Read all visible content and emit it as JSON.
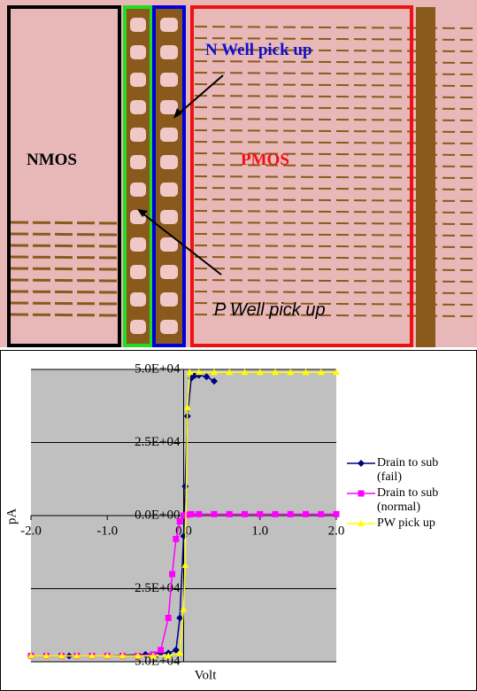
{
  "image_labels": [
    "N Well pick up",
    "NMOS",
    "PMOS",
    "P Well pick up"
  ],
  "chart_data": {
    "type": "line",
    "x_label": "Volt",
    "y_label": "pA",
    "xlim": [
      -2,
      2
    ],
    "ylim": [
      -50000,
      50000
    ],
    "xticks": [
      {
        "value": -2,
        "label": "-2.0"
      },
      {
        "value": -1,
        "label": "-1.0"
      },
      {
        "value": 0,
        "label": "0.0"
      },
      {
        "value": 1,
        "label": "1.0"
      },
      {
        "value": 2,
        "label": "2.0"
      }
    ],
    "yticks": [
      {
        "value": 50000,
        "label": "5.0E+04"
      },
      {
        "value": 25000,
        "label": "2.5E+04"
      },
      {
        "value": 0,
        "label": "0.0E+00"
      },
      {
        "value": -25000,
        "label": "-2.5E+04"
      },
      {
        "value": -50000,
        "label": "-5.0E+04"
      }
    ],
    "grid": true,
    "legend": "right",
    "series": [
      {
        "name": "Drain to sub (fail)",
        "color": "#000080",
        "marker": "diamond",
        "x": [
          -2,
          -1.5,
          -1,
          -0.5,
          -0.3,
          -0.2,
          -0.1,
          -0.05,
          0,
          0.02,
          0.05,
          0.1,
          0.15,
          0.2,
          0.3,
          0.4
        ],
        "values": [
          -48000,
          -48000,
          -48000,
          -47500,
          -47000,
          -47000,
          -46000,
          -35000,
          -7000,
          10000,
          34000,
          47000,
          48000,
          48000,
          47500,
          46000
        ]
      },
      {
        "name": "Drain to sub (normal)",
        "color": "#ff00ff",
        "marker": "square",
        "x": [
          -2,
          -1.8,
          -1.6,
          -1.4,
          -1.2,
          -1,
          -0.8,
          -0.6,
          -0.4,
          -0.3,
          -0.2,
          -0.15,
          -0.1,
          -0.05,
          0,
          0.05,
          0.1,
          0.2,
          0.4,
          0.6,
          0.8,
          1,
          1.2,
          1.4,
          1.6,
          1.8,
          2
        ],
        "values": [
          -48000,
          -48000,
          -48000,
          -48000,
          -48000,
          -48000,
          -48000,
          -48000,
          -47500,
          -46000,
          -35000,
          -20000,
          -8000,
          -2000,
          0,
          300,
          500,
          500,
          500,
          500,
          500,
          500,
          500,
          500,
          500,
          500,
          500
        ]
      },
      {
        "name": "PW pick up",
        "color": "#ffff00",
        "marker": "triangle",
        "x": [
          -2,
          -1.8,
          -1.6,
          -1.4,
          -1.2,
          -1,
          -0.8,
          -0.6,
          -0.4,
          -0.2,
          -0.05,
          0,
          0.02,
          0.05,
          0.08,
          0.2,
          0.4,
          0.6,
          0.8,
          1,
          1.2,
          1.4,
          1.6,
          1.8,
          2
        ],
        "values": [
          -48000,
          -48000,
          -48000,
          -48000,
          -48000,
          -48000,
          -48000,
          -48000,
          -48000,
          -48000,
          -47000,
          -32000,
          -17000,
          37000,
          49000,
          49000,
          49000,
          49000,
          49000,
          49000,
          49000,
          49000,
          49000,
          49000,
          49000
        ]
      }
    ]
  }
}
